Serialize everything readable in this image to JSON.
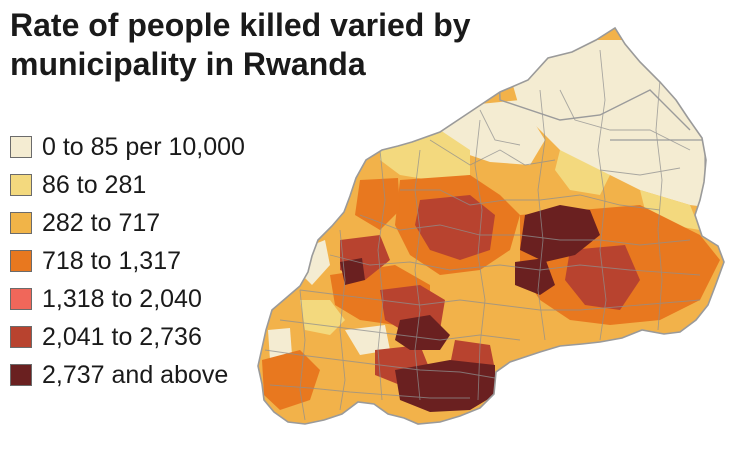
{
  "title": {
    "line1": "Rate of people killed varied by",
    "line2": "municipality in Rwanda"
  },
  "legend": {
    "items": [
      {
        "label": "0 to 85 per 10,000",
        "color": "#f4ecd2"
      },
      {
        "label": "86 to 281",
        "color": "#f3d97e"
      },
      {
        "label": "282 to 717",
        "color": "#f1b448"
      },
      {
        "label": "718 to 1,317",
        "color": "#e8781f"
      },
      {
        "label": "1,318 to 2,040",
        "color": "#f0675a"
      },
      {
        "label": "2,041 to 2,736",
        "color": "#b8432f"
      },
      {
        "label": "2,737 and above",
        "color": "#6a2020"
      }
    ]
  },
  "map": {
    "country": "Rwanda",
    "border_color": "#9a9a9a"
  }
}
